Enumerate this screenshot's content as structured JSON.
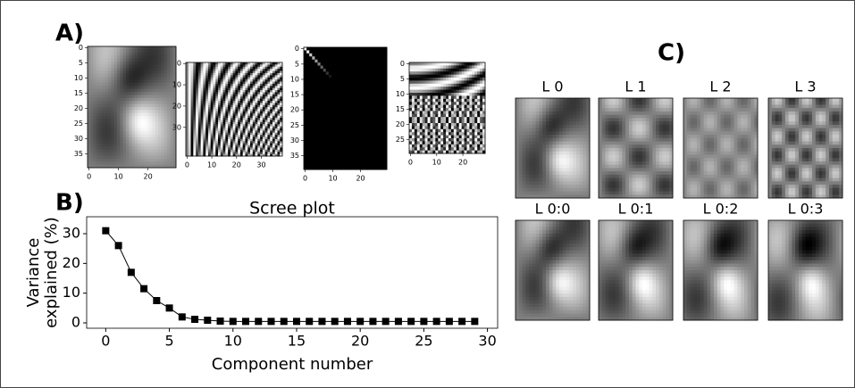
{
  "panel_labels": [
    "A)",
    "B)",
    "C)"
  ],
  "chart_data": [
    {
      "type": "image",
      "xlim": [
        -0.5,
        29.5
      ],
      "ylim": [
        -0.5,
        39.5
      ],
      "xticks": [
        0,
        10,
        20
      ],
      "yticks": [
        0,
        5,
        10,
        15,
        20,
        25,
        30,
        35
      ]
    },
    {
      "type": "image",
      "xlim": [
        -0.5,
        38.5
      ],
      "ylim": [
        -0.5,
        43.5
      ],
      "xticks": [
        0,
        10,
        20,
        30
      ],
      "yticks": [
        0,
        10,
        20,
        30
      ]
    },
    {
      "type": "image",
      "xlim": [
        -0.5,
        29.5
      ],
      "ylim": [
        -0.5,
        39.5
      ],
      "xticks": [
        0,
        10,
        20
      ],
      "yticks": [
        0,
        5,
        10,
        15,
        20,
        25,
        30,
        35
      ]
    },
    {
      "type": "image",
      "xlim": [
        -0.5,
        28.5
      ],
      "ylim": [
        -0.5,
        29.5
      ],
      "xticks": [
        0,
        10,
        20
      ],
      "yticks": [
        0,
        5,
        10,
        15,
        20,
        25
      ]
    },
    {
      "type": "line",
      "title": "Scree plot",
      "xlabel": "Component number",
      "ylabel": [
        "Variance",
        "explained (%)"
      ],
      "x": [
        0,
        1,
        2,
        3,
        4,
        5,
        6,
        7,
        8,
        9,
        10,
        11,
        12,
        13,
        14,
        15,
        16,
        17,
        18,
        19,
        20,
        21,
        22,
        23,
        24,
        25,
        26,
        27,
        28,
        29
      ],
      "values": [
        31,
        26,
        17,
        11.5,
        7.5,
        5,
        2,
        1.2,
        0.9,
        0.6,
        0.5,
        0.5,
        0.5,
        0.5,
        0.5,
        0.5,
        0.5,
        0.5,
        0.5,
        0.5,
        0.5,
        0.5,
        0.5,
        0.5,
        0.5,
        0.5,
        0.5,
        0.5,
        0.5,
        0.5
      ],
      "color": "#000000",
      "xlim": [
        -1.5,
        30.8
      ],
      "ylim": [
        -1.8,
        35.7
      ],
      "xticks": [
        0,
        5,
        10,
        15,
        20,
        25,
        30
      ],
      "yticks": [
        0,
        10,
        20,
        30
      ]
    },
    {
      "type": "image",
      "title": "L 0"
    },
    {
      "type": "image",
      "title": "L 1"
    },
    {
      "type": "image",
      "title": "L 2"
    },
    {
      "type": "image",
      "title": "L 3"
    },
    {
      "type": "image",
      "title": "L 0:0"
    },
    {
      "type": "image",
      "title": "L 0:1"
    },
    {
      "type": "image",
      "title": "L 0:2"
    },
    {
      "type": "image",
      "title": "L 0:3"
    }
  ]
}
